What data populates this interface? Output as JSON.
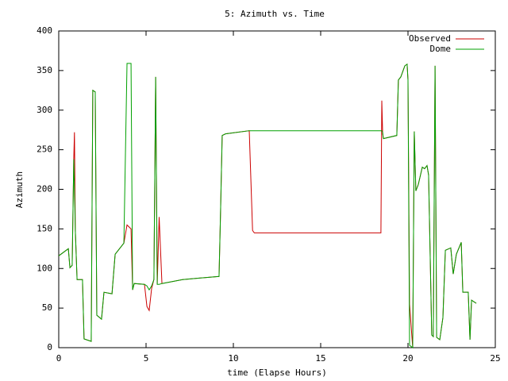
{
  "chart_data": {
    "type": "line",
    "title": "5: Azimuth vs. Time",
    "x_label": "time (Elapse Hours)",
    "y_label": "Azimuth",
    "x": [
      0,
      0.55,
      0.64,
      0.77,
      0.86,
      0.9,
      0.95,
      1.05,
      1.36,
      1.45,
      1.86,
      1.95,
      2.09,
      2.18,
      2.45,
      2.59,
      3.05,
      3.23,
      3.73,
      3.91,
      4.14,
      4.23,
      4.32,
      4.91,
      5.05,
      5.18,
      5.32,
      5.45,
      5.55,
      5.64,
      5.75,
      5.91,
      7.09,
      9.18,
      9.27,
      9.36,
      9.55,
      10.91,
      11.1,
      11.2,
      18.45,
      18.5,
      18.55,
      18.59,
      19.36,
      19.45,
      19.59,
      19.82,
      19.95,
      20,
      20.09,
      20.27,
      20.36,
      20.45,
      20.59,
      20.82,
      20.95,
      21.09,
      21.18,
      21.36,
      21.45,
      21.55,
      21.64,
      21.82,
      22,
      22.14,
      22.45,
      22.59,
      22.77,
      23.05,
      23.14,
      23.45,
      23.55,
      23.64,
      23.91
    ],
    "series": [
      {
        "name": "Observed",
        "color": "#cc0000",
        "values": [
          116,
          125,
          101,
          104,
          238,
          272,
          148,
          86,
          86,
          11,
          8,
          325,
          323,
          41,
          36,
          70,
          68,
          118,
          132,
          155,
          150,
          73,
          81,
          80,
          52,
          47,
          75,
          86,
          342,
          80,
          165,
          81,
          86,
          90,
          175,
          268,
          270,
          274,
          148,
          145,
          145,
          312,
          270,
          264,
          268,
          338,
          342,
          356,
          358,
          338,
          55,
          0,
          273,
          198,
          206,
          228,
          226,
          230,
          218,
          16,
          14,
          356,
          13,
          10,
          38,
          123,
          126,
          93,
          118,
          133,
          70,
          70,
          10,
          60,
          56
        ]
      },
      {
        "name": "Dome",
        "color": "#00a000",
        "values": [
          116,
          125,
          101,
          104,
          238,
          200,
          148,
          86,
          86,
          11,
          8,
          325,
          323,
          41,
          36,
          70,
          68,
          118,
          132,
          359,
          359,
          73,
          81,
          80,
          78,
          73,
          78,
          86,
          342,
          80,
          80,
          81,
          86,
          90,
          175,
          268,
          270,
          274,
          274,
          274,
          274,
          274,
          272,
          264,
          268,
          338,
          342,
          356,
          358,
          338,
          3,
          0,
          273,
          198,
          206,
          228,
          226,
          230,
          218,
          16,
          14,
          356,
          13,
          10,
          38,
          123,
          126,
          93,
          118,
          133,
          70,
          70,
          10,
          60,
          56
        ]
      }
    ],
    "xlim": [
      0,
      25
    ],
    "xticks": [
      0,
      5,
      10,
      15,
      20,
      25
    ],
    "ylim": [
      0,
      400
    ],
    "yticks": [
      0,
      50,
      100,
      150,
      200,
      250,
      300,
      350,
      400
    ],
    "grid": false,
    "legend": "top-right"
  }
}
